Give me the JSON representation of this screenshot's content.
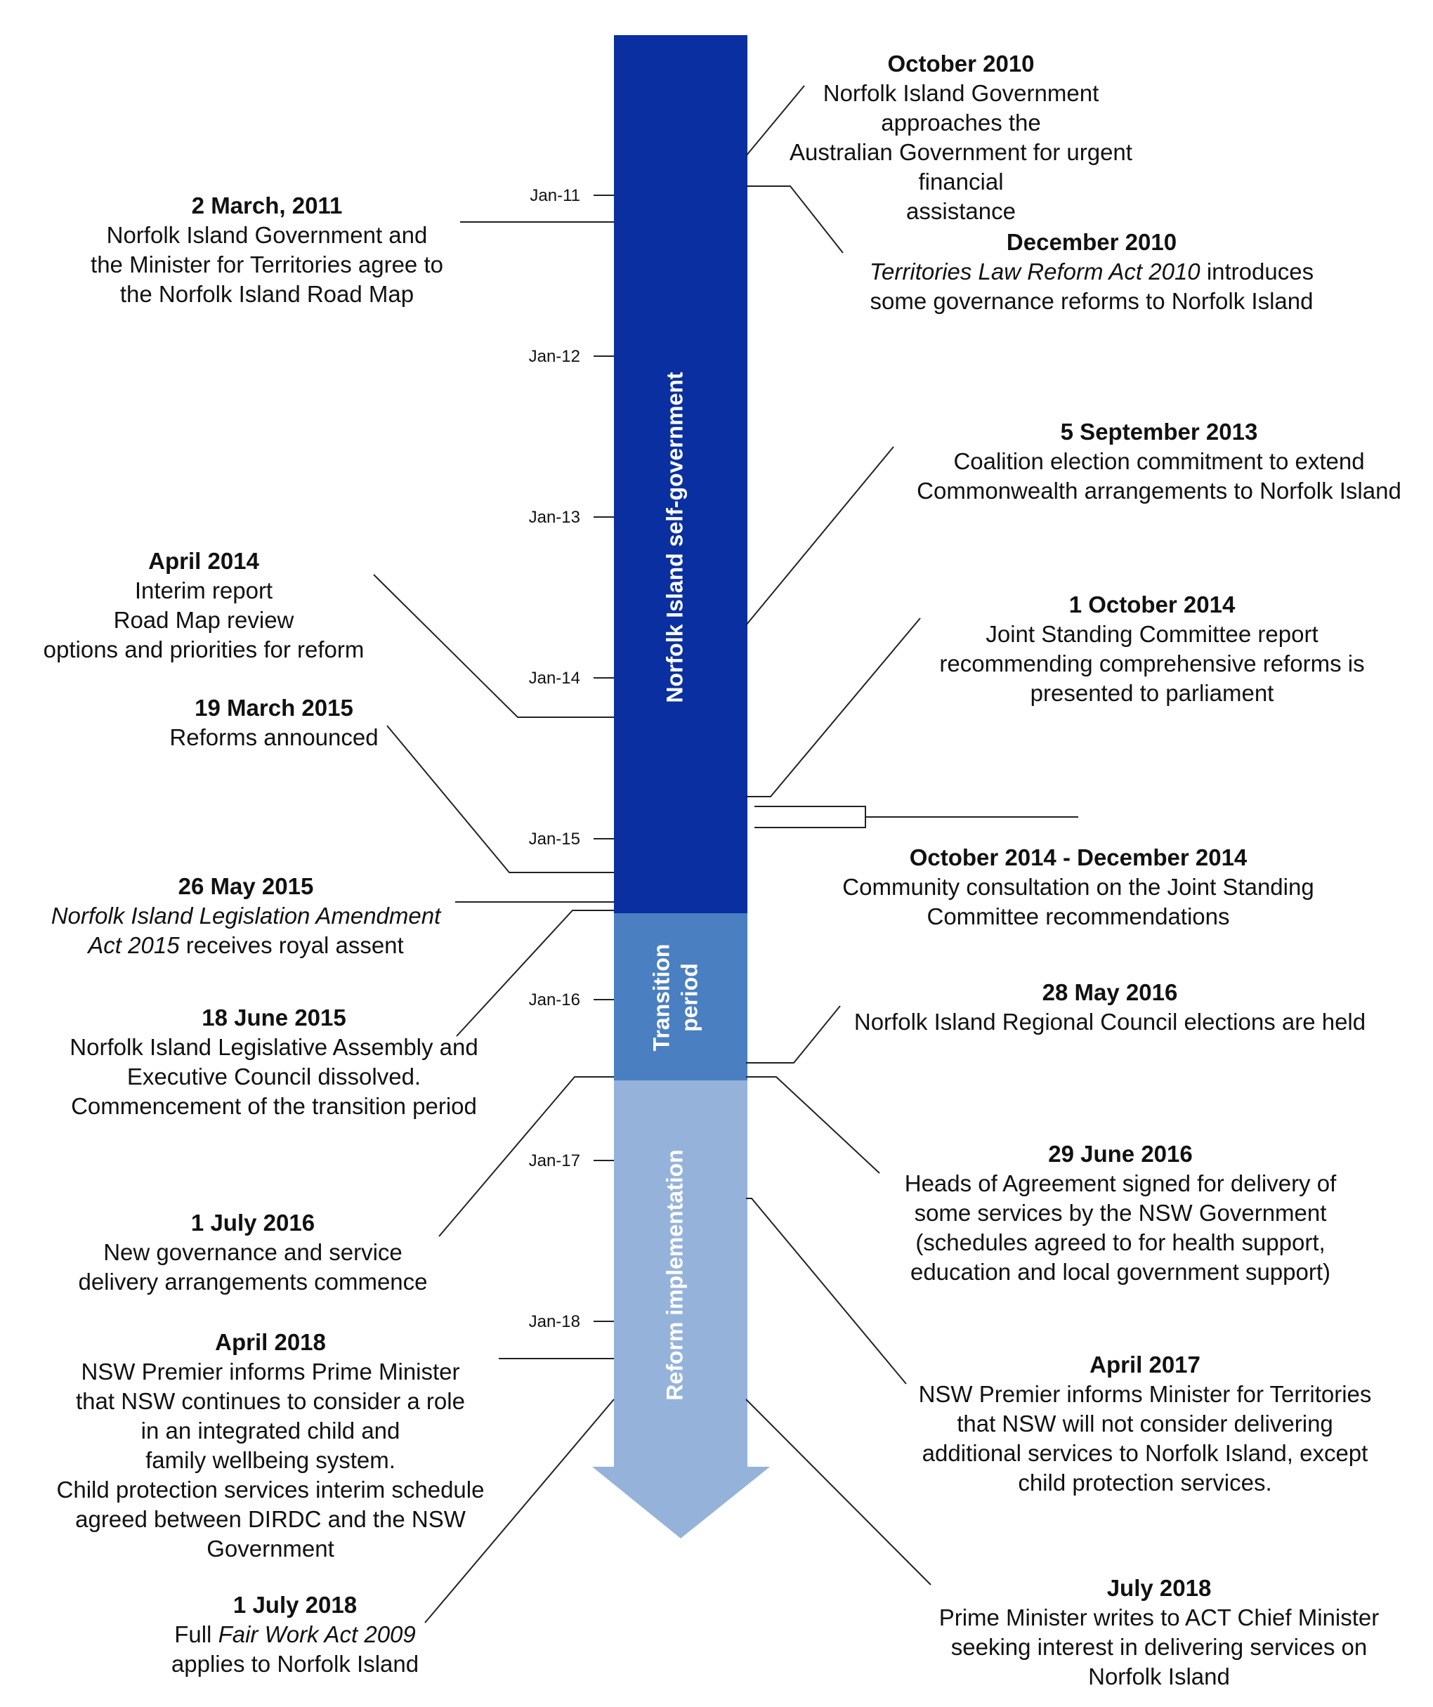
{
  "phases": {
    "self_government": "Norfolk Island self-government",
    "transition_line1": "Transition",
    "transition_line2": "period",
    "reform": "Reform implementation"
  },
  "ticks": [
    "Jan-11",
    "Jan-12",
    "Jan-13",
    "Jan-14",
    "Jan-15",
    "Jan-16",
    "Jan-17",
    "Jan-18"
  ],
  "colors": {
    "self_government": "#0a2fa0",
    "transition": "#4a7fc1",
    "reform": "#95b3da",
    "connector": "#222222"
  },
  "events": {
    "oct2010": {
      "date": "October 2010",
      "lines": [
        "Norfolk Island Government approaches the",
        "Australian Government for urgent financial",
        "assistance"
      ]
    },
    "dec2010": {
      "date": "December 2010",
      "italic": "Territories Law Reform Act 2010",
      "rest": " introduces",
      "line2": "some governance reforms to Norfolk Island"
    },
    "mar2011": {
      "date": "2 March, 2011",
      "lines": [
        "Norfolk Island Government and",
        "the Minister for Territories agree to",
        "the Norfolk Island Road Map"
      ]
    },
    "sep2013": {
      "date": "5 September 2013",
      "lines": [
        "Coalition election commitment to extend",
        "Commonwealth arrangements to Norfolk Island"
      ]
    },
    "apr2014": {
      "date": "April 2014",
      "lines": [
        "Interim report",
        "Road Map review",
        "options and priorities for reform"
      ]
    },
    "oct2014": {
      "date": "1 October 2014",
      "lines": [
        "Joint Standing Committee report",
        "recommending comprehensive reforms is",
        "presented to parliament"
      ]
    },
    "mar2015": {
      "date": "19 March 2015",
      "lines": [
        "Reforms announced"
      ]
    },
    "consult2014": {
      "date": "October 2014 - December 2014",
      "lines": [
        "Community consultation on the Joint Standing",
        "Committee recommendations"
      ]
    },
    "may2015": {
      "date": "26 May 2015",
      "italic1": "Norfolk Island Legislation Amendment",
      "italic2": "Act 2015",
      "rest2": " receives royal assent"
    },
    "jun2015": {
      "date": "18 June 2015",
      "lines": [
        "Norfolk Island Legislative Assembly and",
        "Executive Council dissolved.",
        "Commencement of the transition period"
      ]
    },
    "may2016": {
      "date": "28 May 2016",
      "lines": [
        "Norfolk Island Regional Council elections are held"
      ]
    },
    "jun2016": {
      "date": "29 June 2016",
      "lines": [
        "Heads of Agreement signed for delivery of",
        "some services by the NSW Government",
        "(schedules agreed to for health support,",
        "education and local government support)"
      ]
    },
    "jul2016": {
      "date": "1 July 2016",
      "lines": [
        "New governance and service",
        "delivery arrangements commence"
      ]
    },
    "apr2017": {
      "date": "April 2017",
      "lines": [
        "NSW Premier informs Minister for Territories",
        "that NSW will not consider delivering",
        "additional services to Norfolk Island, except",
        "child protection services."
      ]
    },
    "apr2018": {
      "date": "April 2018",
      "lines": [
        "NSW Premier informs Prime Minister",
        "that NSW continues to consider a role",
        "in an integrated child and",
        "family wellbeing system.",
        "Child protection services interim schedule",
        "agreed between DIRDC and the NSW",
        "Government"
      ]
    },
    "jul2018a": {
      "date": "1 July 2018",
      "pre": "Full ",
      "italic": "Fair Work Act 2009",
      "line2": "applies to Norfolk Island"
    },
    "jul2018b": {
      "date": "July 2018",
      "lines": [
        "Prime Minister writes to ACT Chief Minister",
        "seeking interest in delivering services on",
        "Norfolk Island"
      ]
    }
  }
}
